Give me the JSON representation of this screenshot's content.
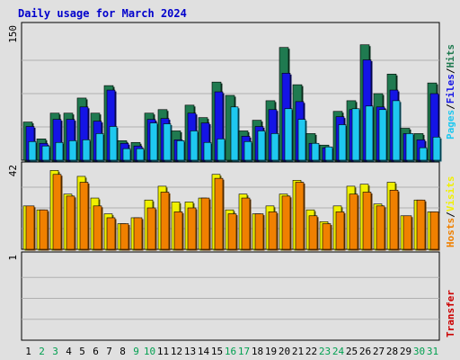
{
  "title": "Daily usage for March 2024",
  "colors": {
    "hits": "#1f7a50",
    "files": "#1414e6",
    "pages": "#1ec8f0",
    "visits": "#f0f000",
    "hosts": "#f08000",
    "title": "#0000cc",
    "weekday_label": "#000000",
    "weekend_label": "#00a050"
  },
  "chart_data": [
    {
      "type": "bar",
      "panel": "hits-files-pages",
      "ylabel_parts": [
        "Hits",
        "Files",
        "Pages"
      ],
      "ytick_top": "150",
      "ylim": [
        0,
        150
      ],
      "grid": true,
      "categories": [
        "1",
        "2",
        "3",
        "4",
        "5",
        "6",
        "7",
        "8",
        "9",
        "10",
        "11",
        "12",
        "13",
        "14",
        "15",
        "16",
        "17",
        "18",
        "19",
        "20",
        "21",
        "22",
        "23",
        "24",
        "25",
        "26",
        "27",
        "28",
        "29",
        "30",
        "31"
      ],
      "weekend_days": [
        "2",
        "3",
        "9",
        "10",
        "16",
        "17",
        "23",
        "24",
        "30",
        "31"
      ],
      "series": [
        {
          "name": "Hits",
          "values": [
            43,
            24,
            53,
            53,
            70,
            53,
            84,
            22,
            20,
            53,
            57,
            33,
            62,
            48,
            88,
            73,
            33,
            45,
            67,
            127,
            85,
            30,
            17,
            55,
            67,
            130,
            75,
            97,
            36,
            30,
            87
          ]
        },
        {
          "name": "Files",
          "values": [
            38,
            19,
            46,
            46,
            60,
            44,
            79,
            19,
            16,
            46,
            47,
            23,
            53,
            42,
            77,
            0,
            27,
            38,
            57,
            98,
            66,
            19,
            14,
            49,
            57,
            113,
            60,
            79,
            30,
            23,
            75
          ]
        },
        {
          "name": "Pages",
          "values": [
            21,
            16,
            20,
            22,
            23,
            30,
            38,
            13,
            13,
            42,
            41,
            22,
            33,
            20,
            24,
            60,
            21,
            33,
            30,
            58,
            46,
            19,
            15,
            40,
            58,
            61,
            57,
            67,
            30,
            14,
            26
          ]
        }
      ]
    },
    {
      "type": "bar",
      "panel": "visits-hosts",
      "ylabel_parts": [
        "Visits",
        "Hosts"
      ],
      "ytick_top": "42",
      "ylim": [
        0,
        42
      ],
      "grid": true,
      "series": [
        {
          "name": "Visits",
          "values": [
            22,
            20,
            40,
            28,
            37,
            26,
            18,
            13,
            16,
            25,
            32,
            24,
            24,
            26,
            38,
            20,
            28,
            18,
            22,
            28,
            35,
            20,
            14,
            22,
            32,
            33,
            23,
            34,
            17,
            25,
            19
          ]
        },
        {
          "name": "Hosts",
          "values": [
            22,
            20,
            38,
            27,
            34,
            22,
            16,
            13,
            16,
            21,
            29,
            19,
            21,
            26,
            36,
            18,
            26,
            18,
            19,
            27,
            34,
            17,
            13,
            19,
            28,
            29,
            22,
            30,
            17,
            25,
            19
          ]
        }
      ]
    },
    {
      "type": "bar",
      "panel": "transfer",
      "ylabel_parts": [
        "Transfer"
      ],
      "ytick_top": "1",
      "ylim": [
        0,
        1
      ],
      "grid": true,
      "series": [
        {
          "name": "Transfer",
          "values": [
            0,
            0,
            0,
            0,
            0,
            0,
            0,
            0,
            0,
            0,
            0,
            0,
            0,
            0,
            0,
            0,
            0,
            0,
            0,
            0,
            0,
            0,
            0,
            0,
            0,
            0,
            0,
            0,
            0,
            0,
            0
          ]
        }
      ]
    }
  ]
}
